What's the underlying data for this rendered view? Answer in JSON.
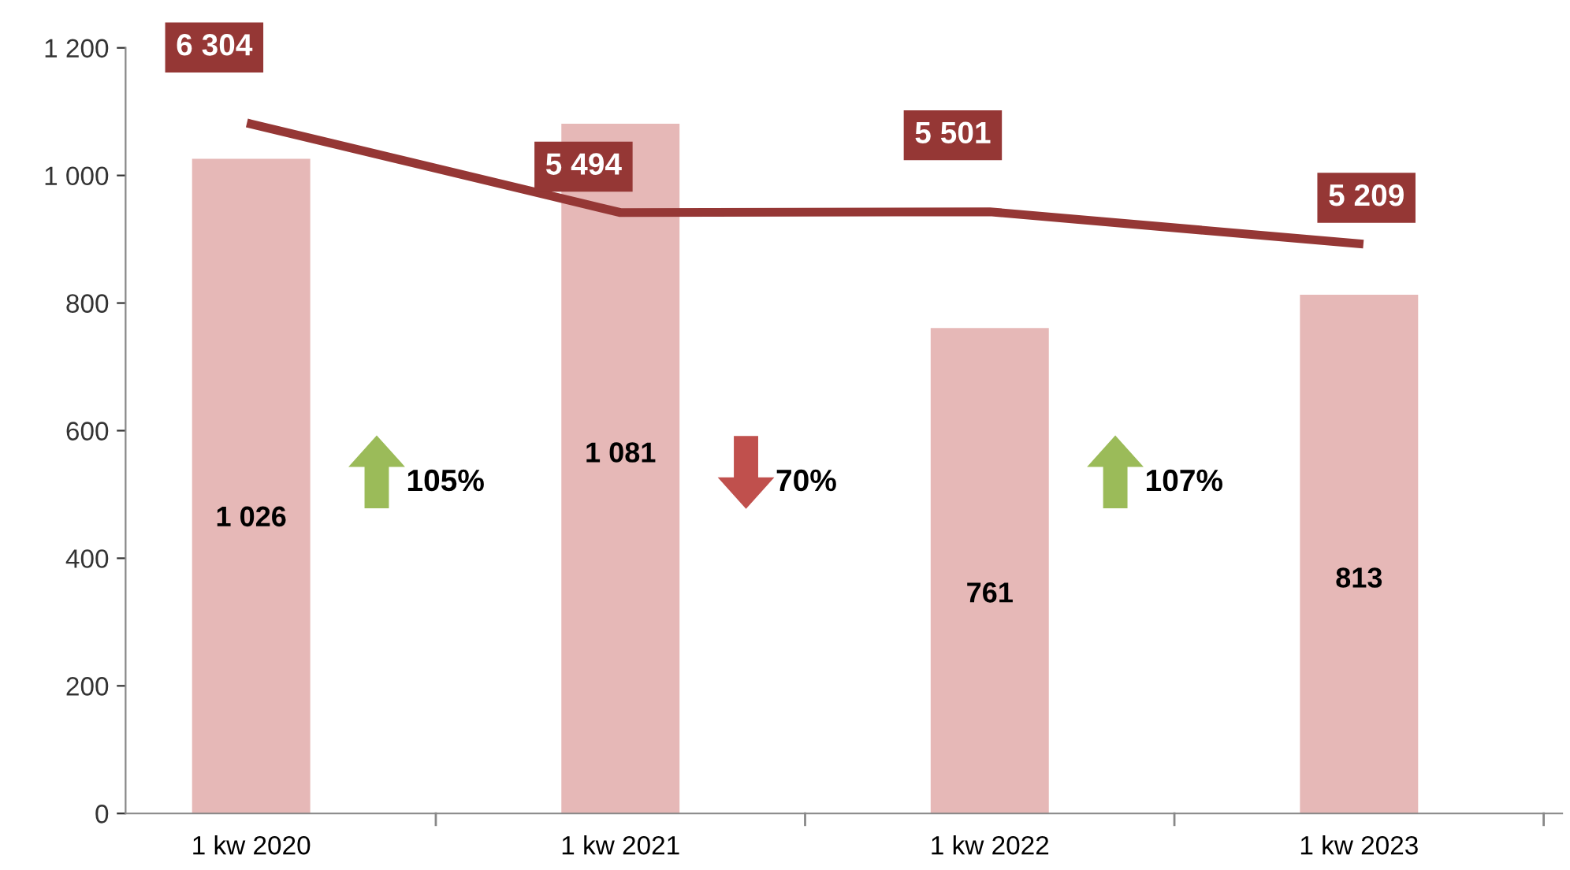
{
  "chart_data": {
    "type": "bar",
    "categories": [
      "1 kw 2020",
      "1 kw 2021",
      "1 kw 2022",
      "1 kw 2023"
    ],
    "series": [
      {
        "color": "#e6b8b7",
        "values": [
          1026,
          1081,
          761,
          813
        ],
        "value_labels": [
          "1 026",
          "1 081",
          "761",
          "813"
        ]
      },
      {
        "type": "line",
        "axis": "y2",
        "color": "#953735",
        "values": [
          6304,
          5494,
          5501,
          5209
        ],
        "value_labels": [
          "6 304",
          "5 494",
          "5 501",
          "5 209"
        ]
      }
    ],
    "ylim": [
      0,
      1200
    ],
    "yticks": [
      0,
      {
        "value": 200,
        "label": "200"
      },
      {
        "value": 400,
        "label": "400"
      },
      {
        "value": 600,
        "label": "600"
      },
      {
        "value": 800,
        "label": "800"
      },
      {
        "value": 1000,
        "label": "1 000"
      },
      {
        "value": 1200,
        "label": "1 200"
      }
    ],
    "y2lim": [
      0,
      7000
    ],
    "annotations": [
      "105%",
      "70%",
      "107%"
    ],
    "grid": false,
    "marker": "none",
    "line_style": "solid"
  }
}
